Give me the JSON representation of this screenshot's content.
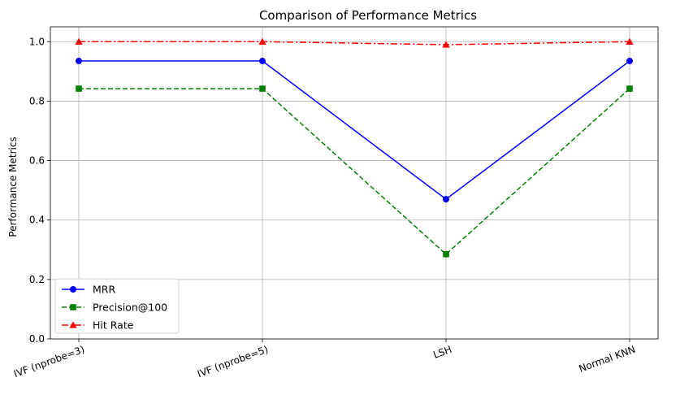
{
  "chart_data": {
    "type": "line",
    "title": "Comparison of Performance Metrics",
    "xlabel": "",
    "ylabel": "Performance Metrics",
    "categories": [
      "IVF (nprobe=3)",
      "IVF (nprobe=5)",
      "LSH",
      "Normal KNN"
    ],
    "ylim": [
      0.0,
      1.05
    ],
    "yticks": [
      0.0,
      0.2,
      0.4,
      0.6,
      0.8,
      1.0
    ],
    "ytick_labels": [
      "0.0",
      "0.2",
      "0.4",
      "0.6",
      "0.8",
      "1.0"
    ],
    "grid": true,
    "legend_position": "lower-left",
    "series": [
      {
        "name": "MRR",
        "values": [
          0.935,
          0.935,
          0.47,
          0.935
        ],
        "color": "#0000ff",
        "marker": "circle",
        "linestyle": "solid"
      },
      {
        "name": "Precision@100",
        "values": [
          0.842,
          0.842,
          0.285,
          0.842
        ],
        "color": "#008000",
        "marker": "square",
        "linestyle": "dashed"
      },
      {
        "name": "Hit Rate",
        "values": [
          1.0,
          1.0,
          0.99,
          1.0
        ],
        "color": "#ff0000",
        "marker": "triangle",
        "linestyle": "dashdot"
      }
    ]
  }
}
